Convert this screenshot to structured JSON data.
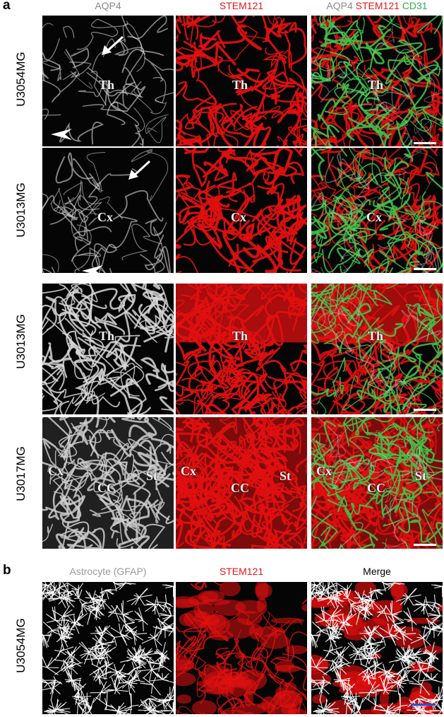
{
  "panel_a": {
    "letter": "a",
    "column_headers": [
      {
        "parts": [
          {
            "text": "AQP4",
            "color": "#8a8a8a"
          }
        ]
      },
      {
        "parts": [
          {
            "text": "STEM121",
            "color": "#e8141c"
          }
        ]
      },
      {
        "parts": [
          {
            "text": "AQP4 ",
            "color": "#8a8a8a"
          },
          {
            "text": "STEM121 ",
            "color": "#e8141c"
          },
          {
            "text": "CD31",
            "color": "#2bb24c"
          }
        ]
      }
    ],
    "rows": [
      {
        "label": "U3054MG",
        "regions": [
          "Th"
        ]
      },
      {
        "label": "U3013MG",
        "regions": [
          "Cx"
        ]
      },
      {
        "label": "U3013MG",
        "regions": [
          "Th"
        ]
      },
      {
        "label": "U3017MG",
        "regions": [
          "Cx",
          "CC",
          "St"
        ]
      }
    ]
  },
  "panel_b": {
    "letter": "b",
    "column_headers": [
      {
        "parts": [
          {
            "text": "Astrocyte (GFAP)",
            "color": "#9a9a9a"
          }
        ]
      },
      {
        "parts": [
          {
            "text": "STEM121",
            "color": "#e8141c"
          }
        ]
      },
      {
        "parts": [
          {
            "text": "Merge",
            "color": "#000000"
          }
        ]
      }
    ],
    "row_label": "U3054MG"
  },
  "colors": {
    "aqp4_gray": "#d8d8d8",
    "stem121_red": "#e01010",
    "cd31_green": "#3fc24a",
    "scalebar_white": "#ffffff",
    "scalebar_blue": "#2a4fd8"
  },
  "icons": [
    "arrow-icon",
    "arrowhead-icon"
  ]
}
